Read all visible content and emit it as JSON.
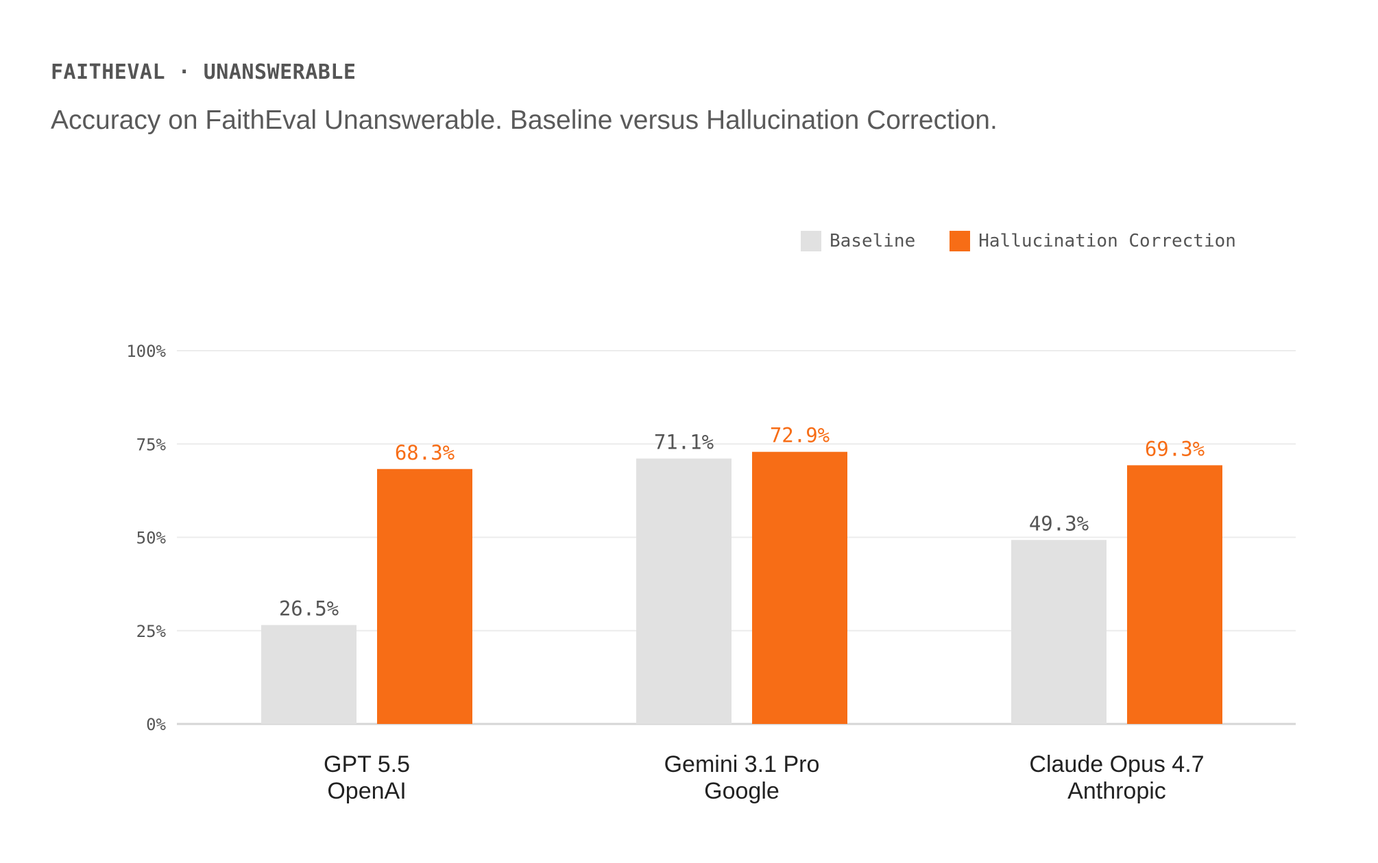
{
  "header": {
    "kicker": "FAITHEVAL · UNANSWERABLE",
    "subtitle": "Accuracy on FaithEval Unanswerable. Baseline versus Hallucination Correction."
  },
  "chart_data": {
    "type": "bar",
    "categories": [
      {
        "model": "GPT 5.5",
        "vendor": "OpenAI"
      },
      {
        "model": "Gemini 3.1 Pro",
        "vendor": "Google"
      },
      {
        "model": "Claude Opus 4.7",
        "vendor": "Anthropic"
      }
    ],
    "series": [
      {
        "name": "Baseline",
        "color": "#e1e1e1",
        "label_color": "#555555",
        "values": [
          26.5,
          71.1,
          49.3
        ],
        "labels": [
          "26.5%",
          "71.1%",
          "49.3%"
        ]
      },
      {
        "name": "Hallucination Correction",
        "color": "#f76d16",
        "label_color": "#f76d16",
        "values": [
          68.3,
          72.9,
          69.3
        ],
        "labels": [
          "68.3%",
          "72.9%",
          "69.3%"
        ]
      }
    ],
    "ylim": [
      0,
      100
    ],
    "yticks": [
      {
        "value": 0,
        "label": "0%"
      },
      {
        "value": 25,
        "label": "25%"
      },
      {
        "value": 50,
        "label": "50%"
      },
      {
        "value": 75,
        "label": "75%"
      },
      {
        "value": 100,
        "label": "100%"
      }
    ],
    "grid": true,
    "legend_position": "top-right"
  }
}
